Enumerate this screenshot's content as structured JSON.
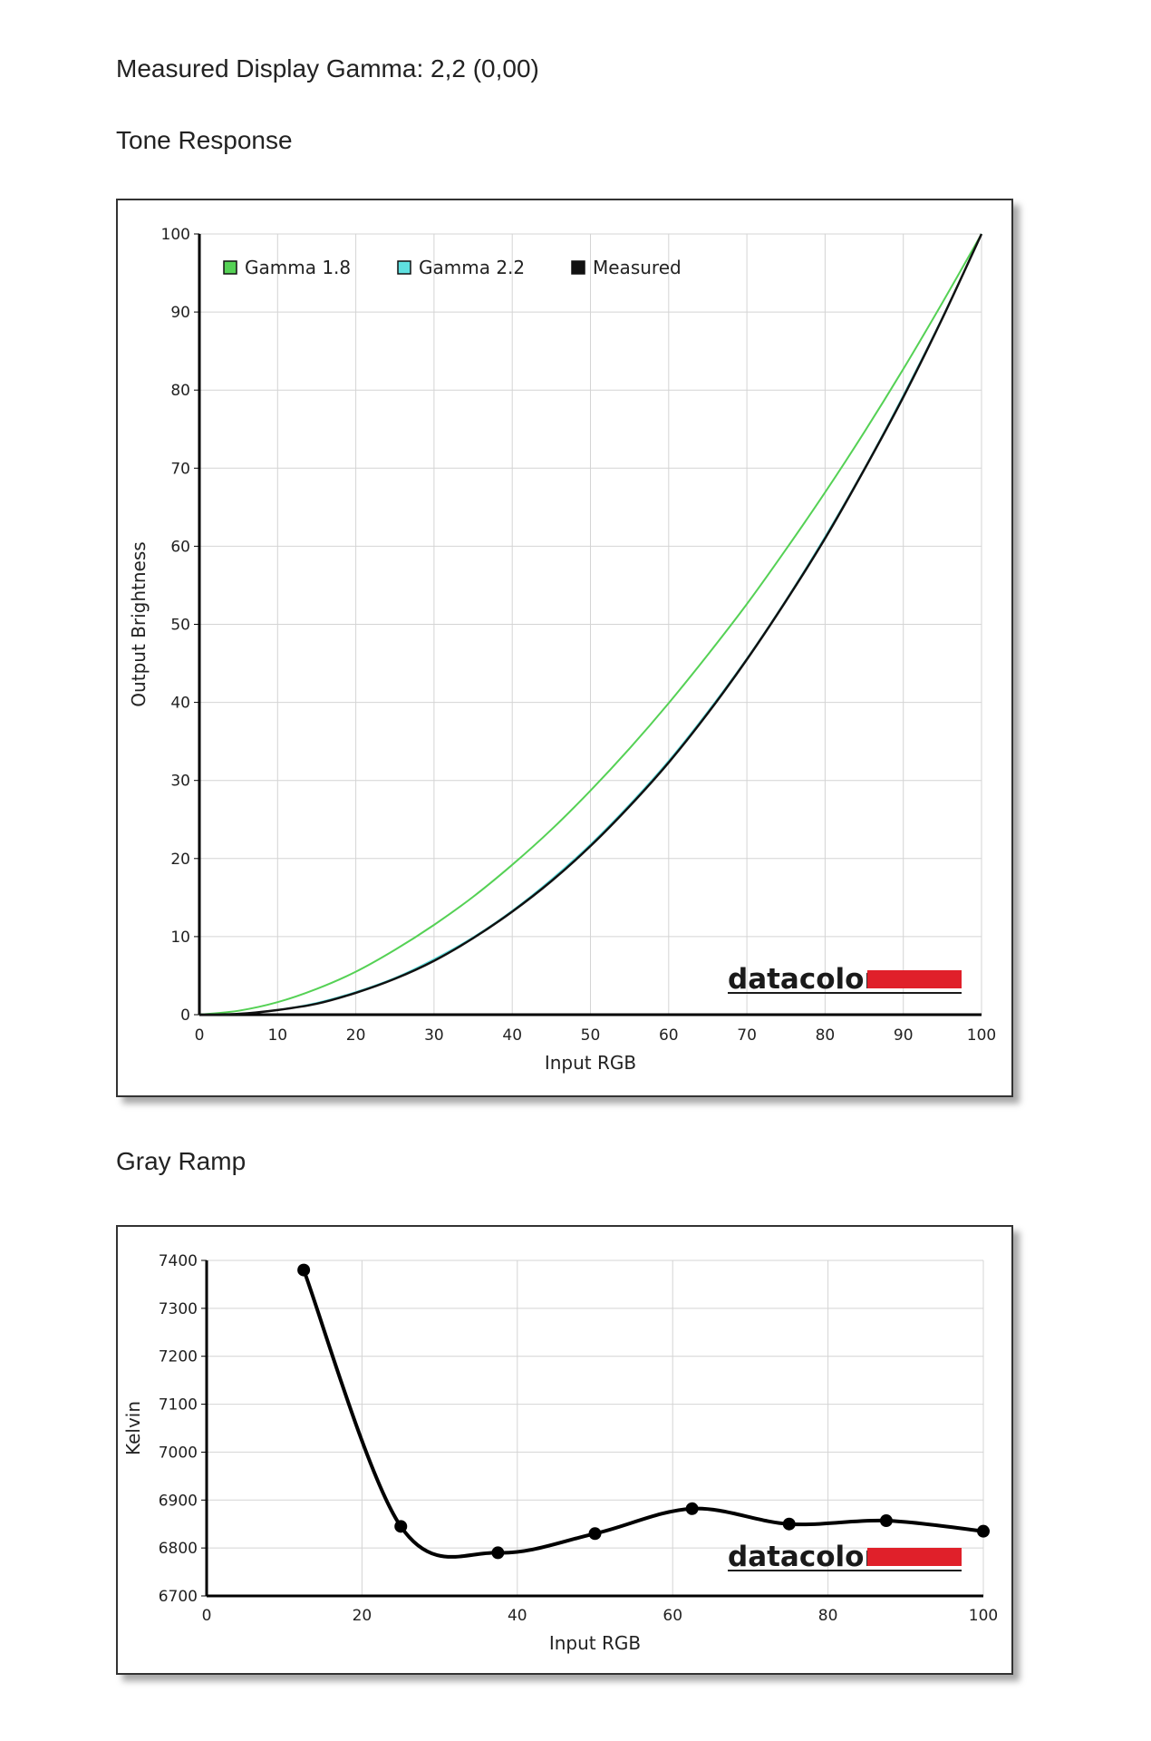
{
  "page": {
    "gamma_heading": "Measured Display Gamma: 2,2 (0,00)",
    "tone_heading": "Tone Response",
    "gray_heading": "Gray Ramp"
  },
  "brand": {
    "name": "datacolor",
    "bar_color": "#e0202a"
  },
  "chart_data": [
    {
      "id": "tone-response",
      "type": "line",
      "xlabel": "Input RGB",
      "ylabel": "Output Brightness",
      "xlim": [
        0,
        100
      ],
      "ylim": [
        0,
        100
      ],
      "xticks": [
        "0",
        "10",
        "20",
        "30",
        "40",
        "50",
        "60",
        "70",
        "80",
        "90",
        "100"
      ],
      "yticks": [
        "0",
        "10",
        "20",
        "30",
        "40",
        "50",
        "60",
        "70",
        "80",
        "90",
        "100"
      ],
      "grid": true,
      "legend_position": "top-left",
      "x": [
        0,
        5,
        10,
        15,
        20,
        25,
        30,
        35,
        40,
        45,
        50,
        55,
        60,
        65,
        70,
        75,
        80,
        85,
        90,
        95,
        100
      ],
      "series": [
        {
          "name": "Gamma 1.8",
          "color": "#55d155",
          "values": [
            0,
            0.5,
            1.6,
            3.3,
            5.5,
            8.3,
            11.5,
            15.1,
            19.2,
            23.7,
            28.7,
            34.1,
            39.9,
            46.1,
            52.6,
            59.6,
            66.9,
            74.6,
            82.7,
            91.2,
            100
          ]
        },
        {
          "name": "Gamma 2.2",
          "color": "#5fe0e0",
          "values": [
            0,
            0.1,
            0.6,
            1.5,
            2.9,
            4.7,
            7.1,
            9.9,
            13.3,
            17.3,
            21.8,
            26.9,
            32.5,
            38.8,
            45.6,
            53.1,
            61.2,
            69.9,
            79.3,
            89.3,
            100
          ]
        },
        {
          "name": "Measured",
          "color": "#111111",
          "values": [
            0,
            0.1,
            0.6,
            1.4,
            2.8,
            4.6,
            6.9,
            9.8,
            13.2,
            17.1,
            21.6,
            26.7,
            32.3,
            38.6,
            45.5,
            53.0,
            61.0,
            69.8,
            79.1,
            89.2,
            100
          ]
        }
      ]
    },
    {
      "id": "gray-ramp",
      "type": "line",
      "xlabel": "Input RGB",
      "ylabel": "Kelvin",
      "xlim": [
        0,
        100
      ],
      "ylim": [
        6700,
        7400
      ],
      "xticks": [
        "0",
        "20",
        "40",
        "60",
        "80",
        "100"
      ],
      "yticks": [
        "6700",
        "6800",
        "6900",
        "7000",
        "7100",
        "7200",
        "7300",
        "7400"
      ],
      "grid": true,
      "series": [
        {
          "name": "",
          "color": "#000000",
          "x": [
            12.5,
            25,
            37.5,
            50,
            62.5,
            75,
            87.5,
            100
          ],
          "values": [
            7380,
            6845,
            6790,
            6830,
            6882,
            6850,
            6857,
            6835
          ]
        }
      ]
    }
  ]
}
